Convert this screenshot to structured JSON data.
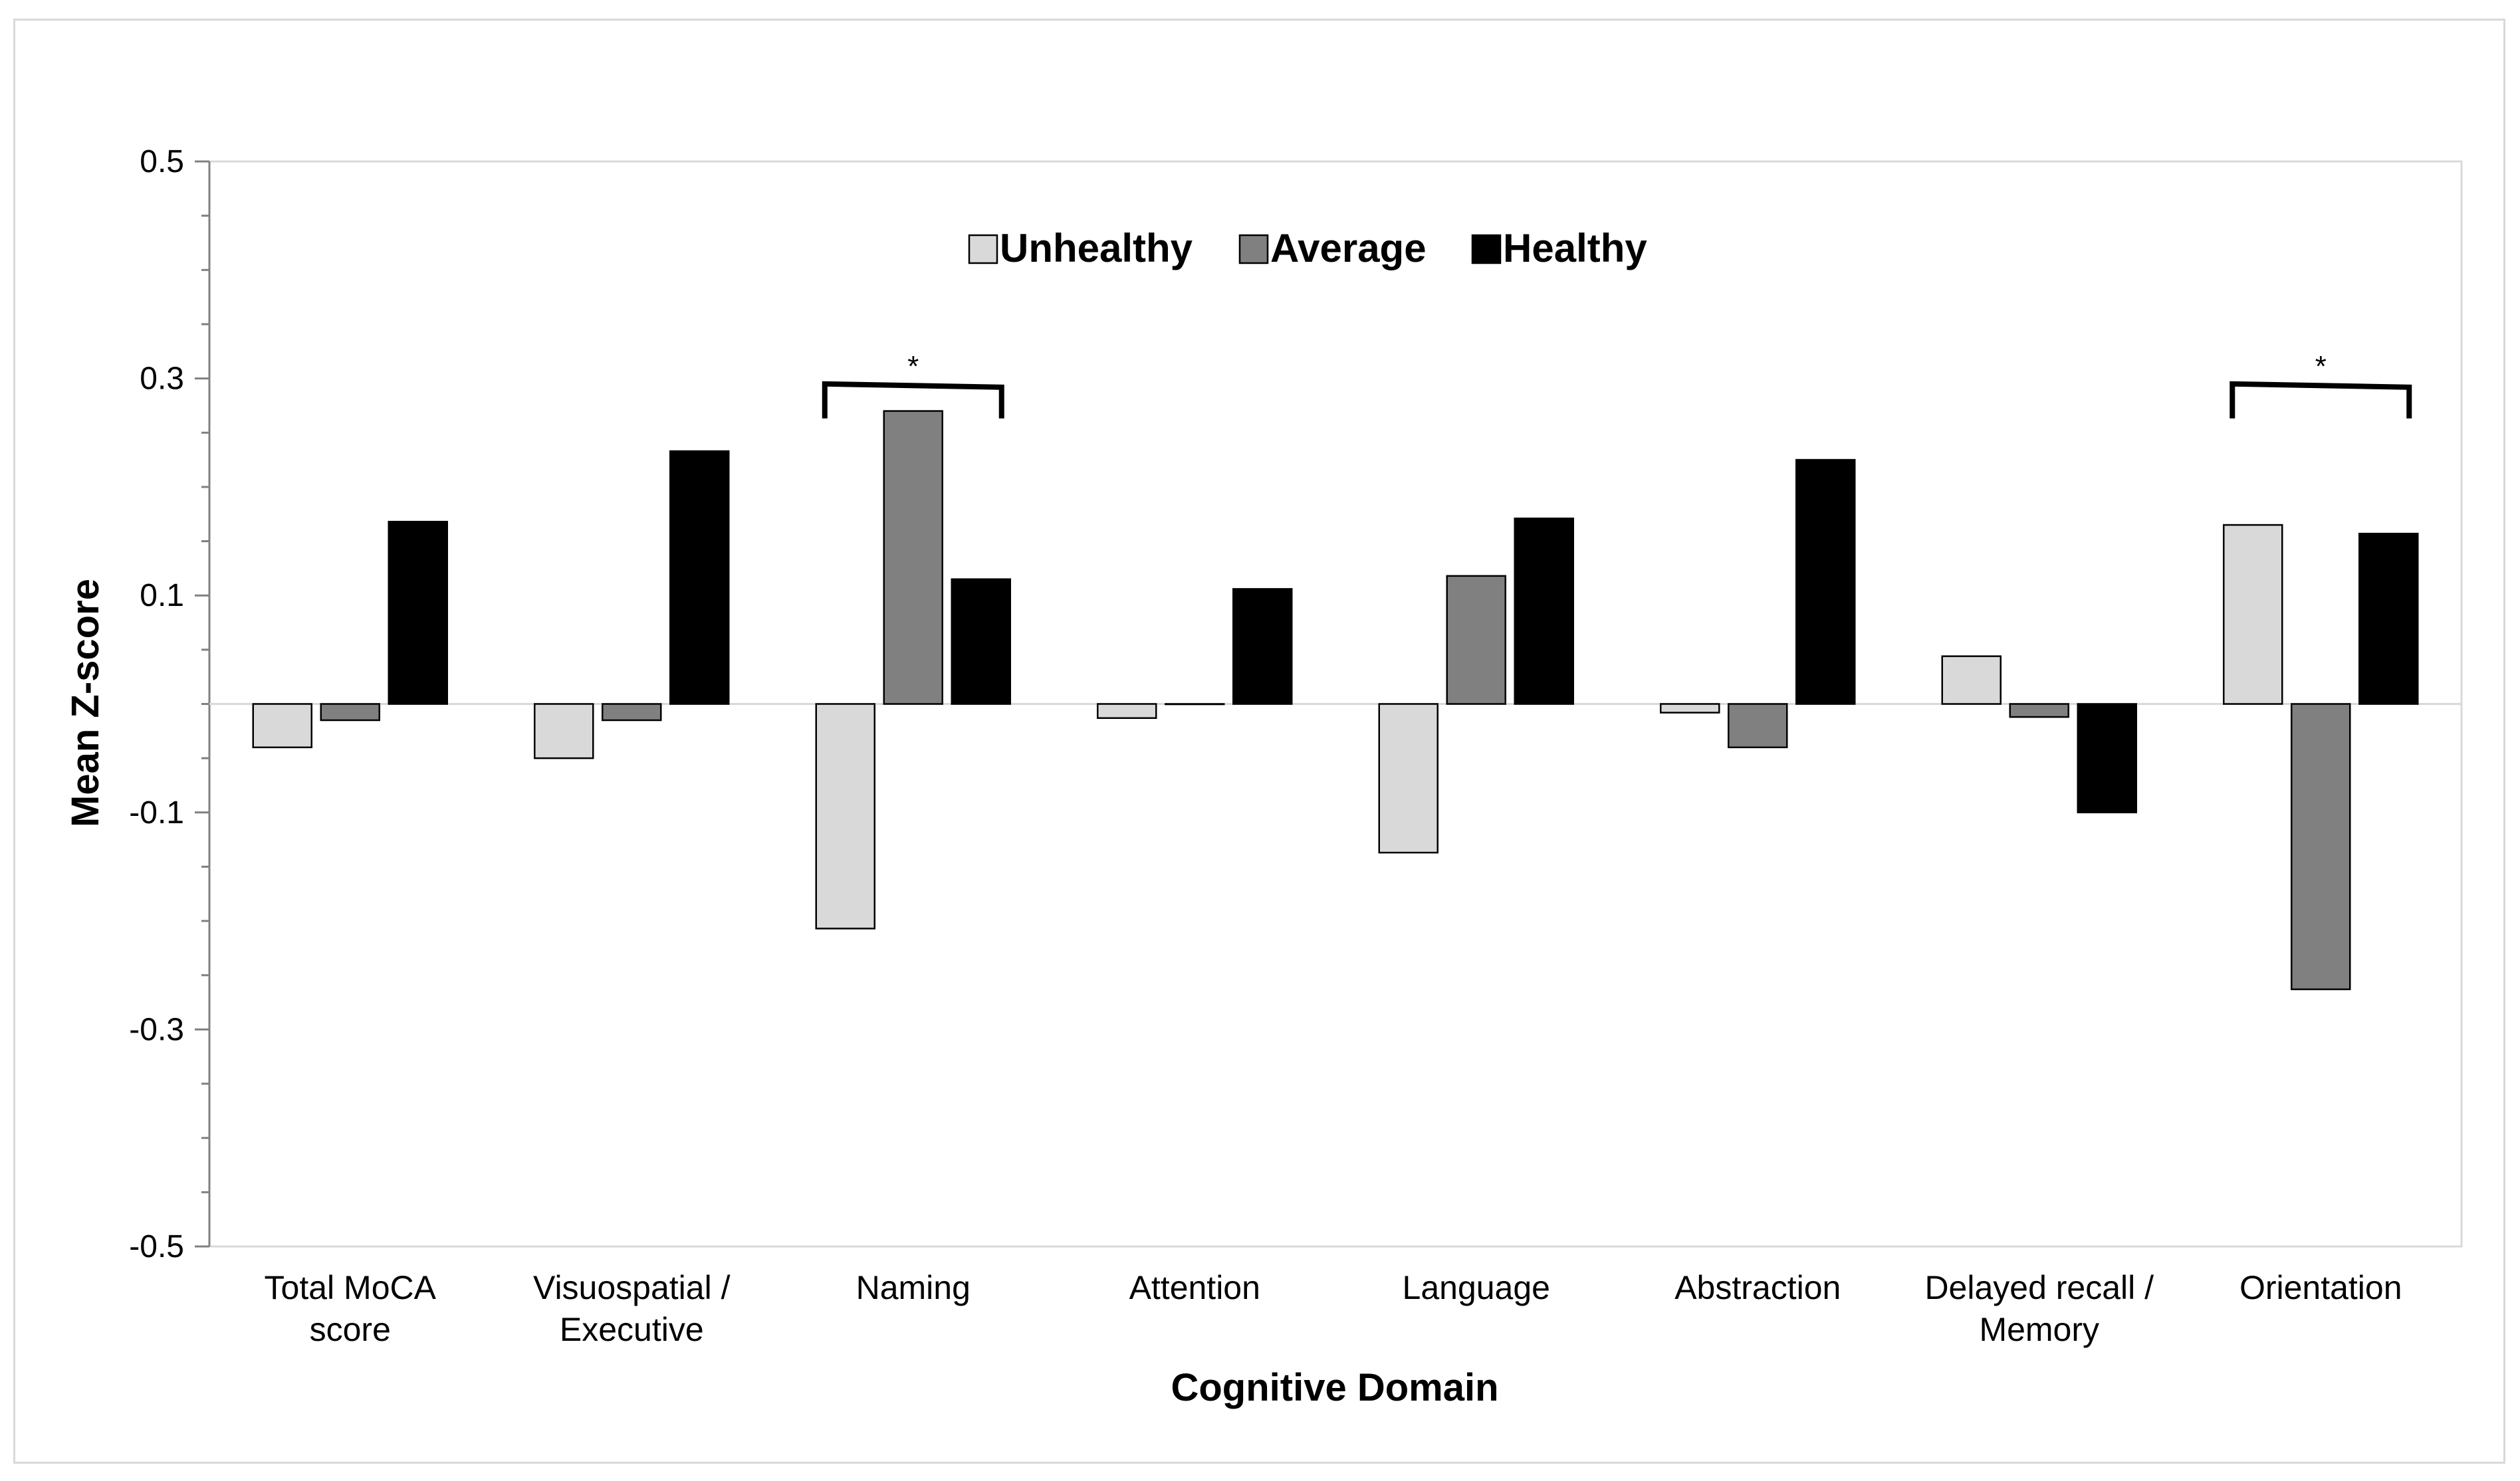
{
  "chart_data": {
    "type": "bar",
    "title": "",
    "xlabel": "Cognitive Domain",
    "ylabel": "Mean Z-score",
    "ylim": [
      -0.5,
      0.5
    ],
    "yticks": [
      "-0.5",
      "-0.3",
      "-0.1",
      "0.1",
      "0.3",
      "0.5"
    ],
    "grid": false,
    "legend_position": "top-center",
    "categories": [
      [
        "Total MoCA",
        "score"
      ],
      [
        "Visuospatial /",
        "Executive"
      ],
      [
        "Naming"
      ],
      [
        "Attention"
      ],
      [
        "Language"
      ],
      [
        "Abstraction"
      ],
      [
        "Delayed recall /",
        "Memory"
      ],
      [
        "Orientation"
      ]
    ],
    "series": [
      {
        "name": "Unhealthy",
        "color": "#d9d9d9",
        "values": [
          -0.04,
          -0.05,
          -0.207,
          -0.013,
          -0.137,
          -0.008,
          0.044,
          0.165
        ]
      },
      {
        "name": "Average",
        "color": "#808080",
        "values": [
          -0.015,
          -0.015,
          0.27,
          0.0,
          0.118,
          -0.04,
          -0.012,
          -0.263
        ]
      },
      {
        "name": "Healthy",
        "color": "#000000",
        "values": [
          0.168,
          0.233,
          0.115,
          0.106,
          0.171,
          0.225,
          -0.1,
          0.157
        ]
      }
    ],
    "significance": [
      {
        "category_index": 2,
        "label": "*"
      },
      {
        "category_index": 7,
        "label": "*"
      }
    ]
  }
}
